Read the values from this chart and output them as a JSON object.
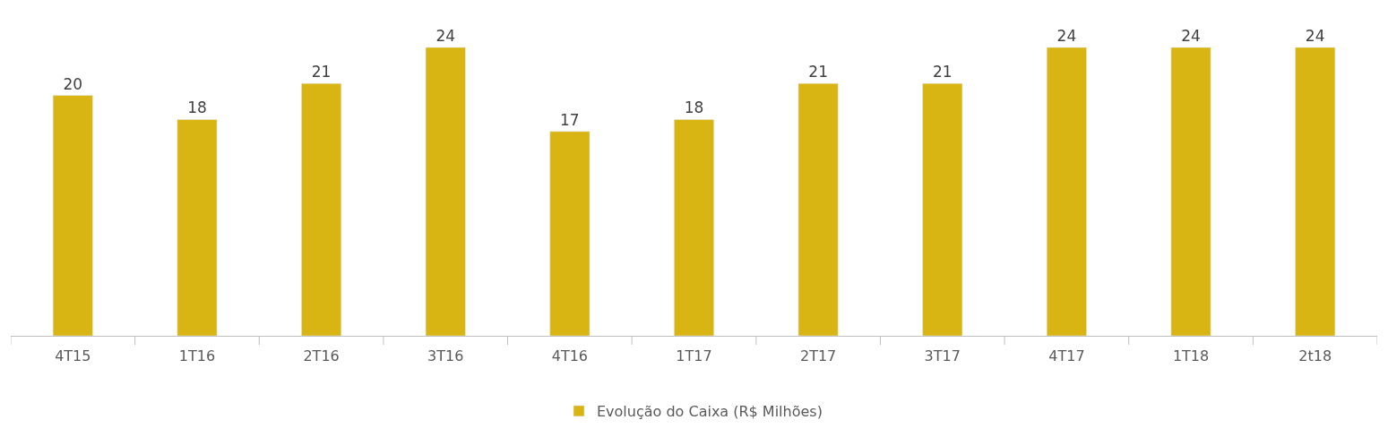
{
  "chart_data": {
    "type": "bar",
    "categories": [
      "4T15",
      "1T16",
      "2T16",
      "3T16",
      "4T16",
      "1T17",
      "2T17",
      "3T17",
      "4T17",
      "1T18",
      "2t18"
    ],
    "series": [
      {
        "name": "Evolução do Caixa (R$ Milhões)",
        "color": "#d9b514",
        "values": [
          20,
          18,
          21,
          24,
          17,
          18,
          21,
          21,
          24,
          24,
          24
        ]
      }
    ],
    "data_labels": true,
    "legend": "bottom"
  }
}
